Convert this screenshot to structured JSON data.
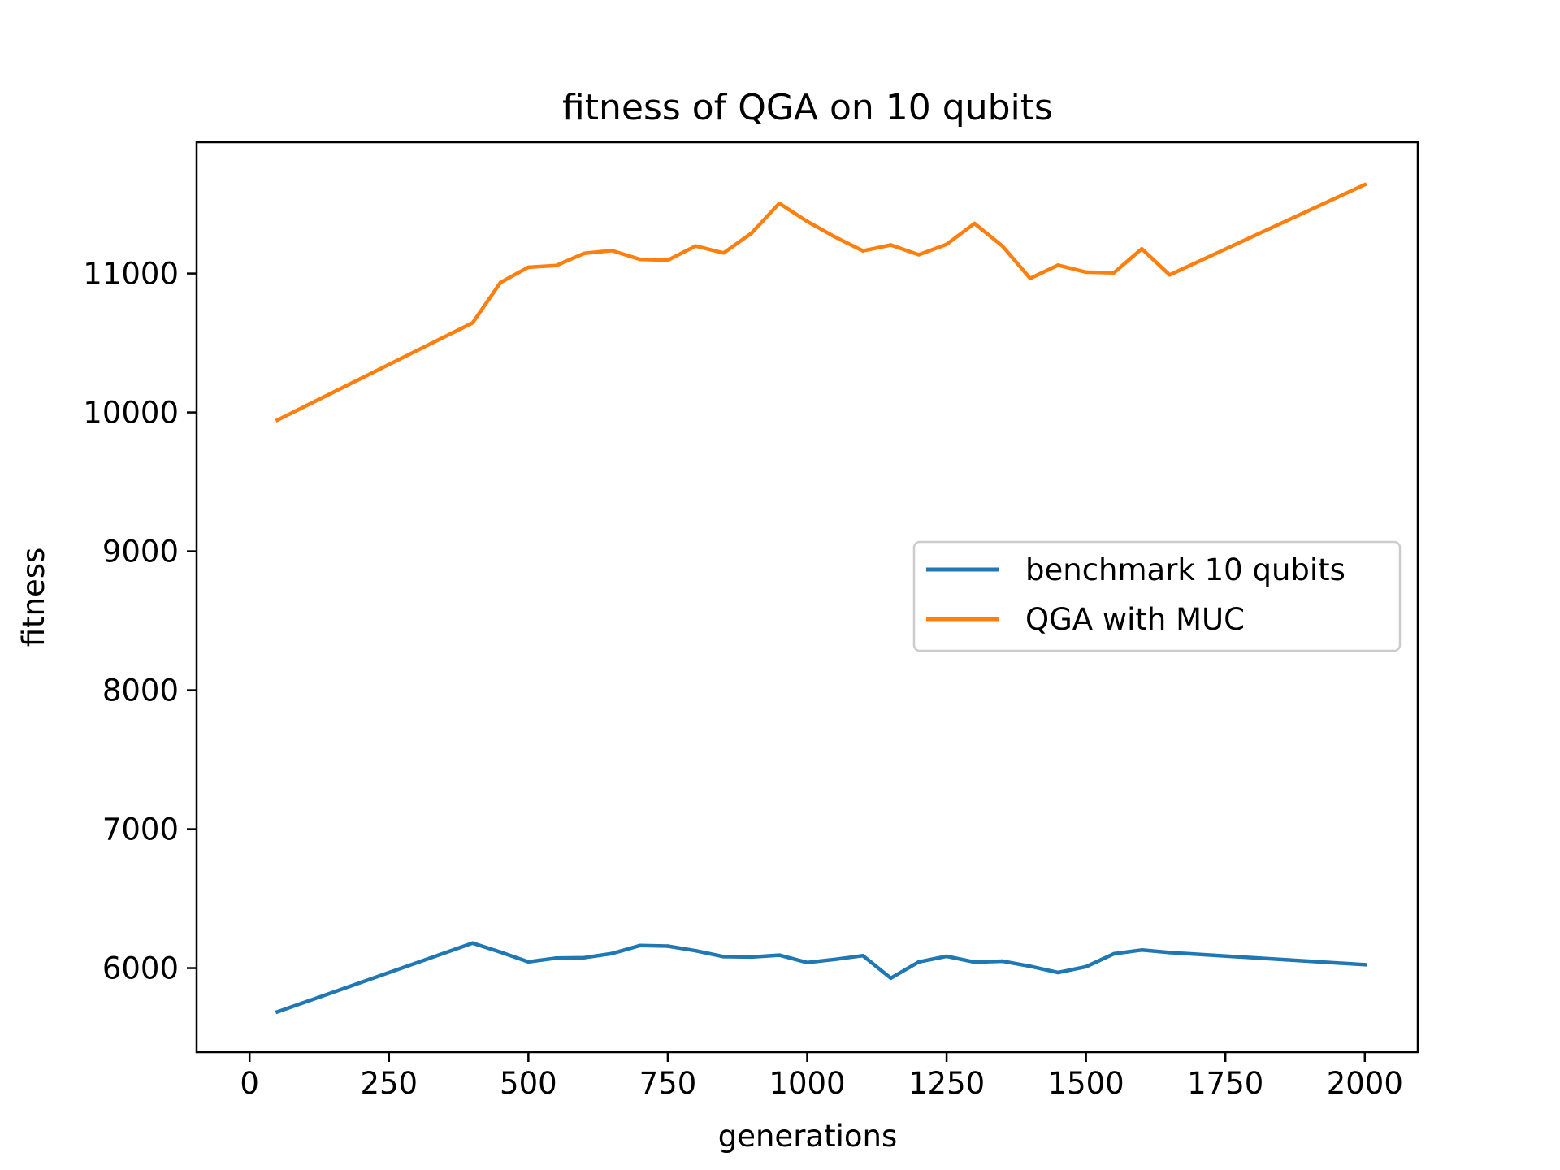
{
  "chart_data": {
    "type": "line",
    "title": "fitness of QGA on 10 qubits",
    "xlabel": "generations",
    "ylabel": "fitness",
    "xlim": [
      -95,
      2095
    ],
    "ylim": [
      5395,
      11945
    ],
    "xticks": [
      0,
      250,
      500,
      750,
      1000,
      1250,
      1500,
      1750,
      2000
    ],
    "xtick_labels": [
      "0",
      "250",
      "500",
      "750",
      "1000",
      "1250",
      "1500",
      "1750",
      "2000"
    ],
    "yticks": [
      6000,
      7000,
      8000,
      9000,
      10000,
      11000
    ],
    "ytick_labels": [
      "6000",
      "7000",
      "8000",
      "9000",
      "10000",
      "11000"
    ],
    "grid": false,
    "legend_position": "center-right",
    "series": [
      {
        "name": "benchmark 10 qubits",
        "color": "#1f77b4",
        "x": [
          50,
          400,
          450,
          500,
          550,
          600,
          650,
          700,
          750,
          800,
          850,
          900,
          950,
          1000,
          1050,
          1100,
          1150,
          1200,
          1250,
          1300,
          1350,
          1400,
          1450,
          1500,
          1550,
          1600,
          1650,
          2000
        ],
        "y": [
          5685,
          6180,
          6115,
          6045,
          6072,
          6075,
          6105,
          6162,
          6158,
          6125,
          6083,
          6080,
          6093,
          6040,
          6063,
          6090,
          5928,
          6045,
          6085,
          6043,
          6050,
          6013,
          5968,
          6010,
          6103,
          6130,
          6112,
          6025
        ]
      },
      {
        "name": "QGA with MUC",
        "color": "#ff7f0e",
        "x": [
          50,
          400,
          450,
          500,
          550,
          600,
          650,
          700,
          750,
          800,
          850,
          900,
          950,
          1000,
          1050,
          1100,
          1150,
          1200,
          1250,
          1300,
          1350,
          1400,
          1450,
          1500,
          1550,
          1600,
          1650,
          2000
        ],
        "y": [
          9945,
          10645,
          10935,
          11045,
          11058,
          11145,
          11165,
          11102,
          11095,
          11198,
          11148,
          11290,
          11505,
          11375,
          11263,
          11163,
          11205,
          11135,
          11210,
          11360,
          11198,
          10965,
          11060,
          11010,
          11005,
          11178,
          10990,
          11640
        ]
      }
    ]
  }
}
